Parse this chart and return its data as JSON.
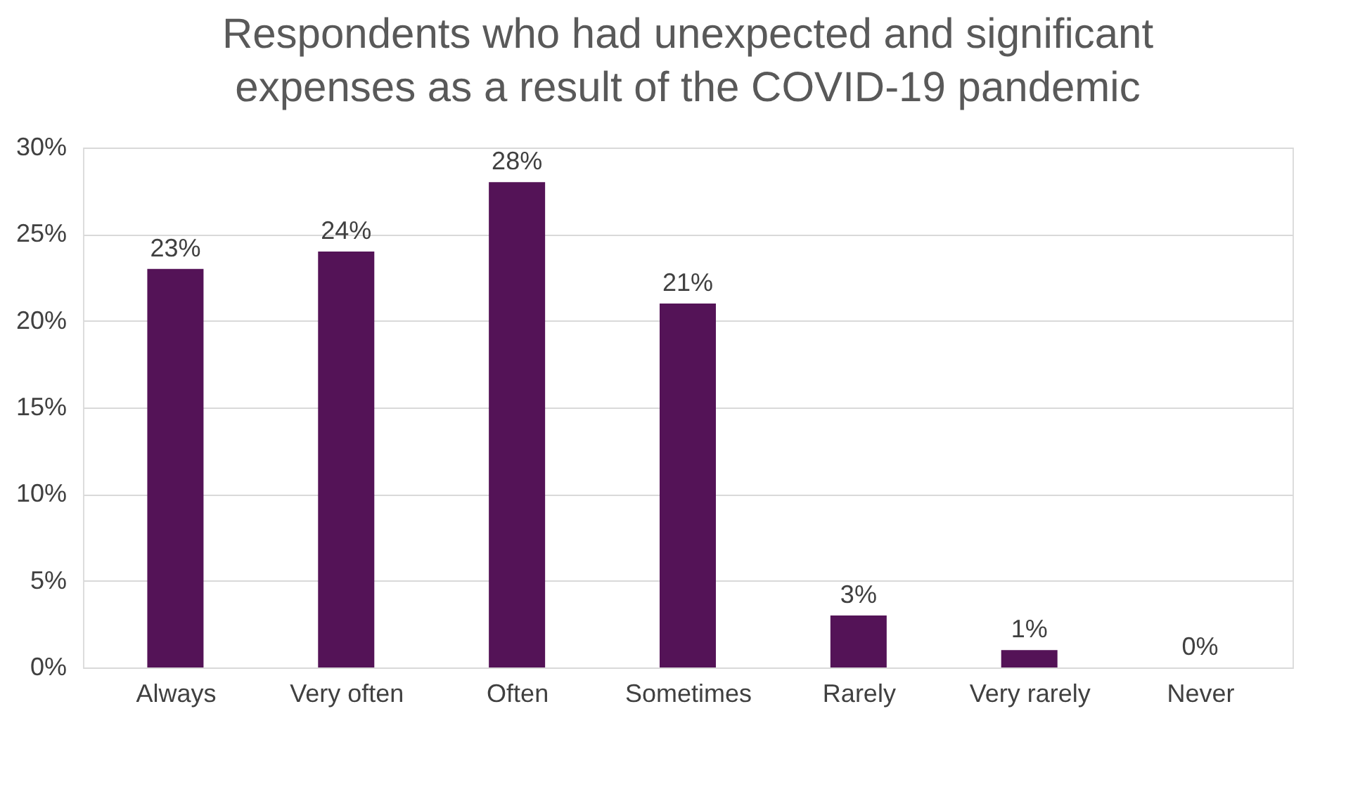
{
  "chart_data": {
    "type": "bar",
    "title": "Respondents who had unexpected and significant expenses as a result of the COVID-19 pandemic",
    "categories": [
      "Always",
      "Very often",
      "Often",
      "Sometimes",
      "Rarely",
      "Very rarely",
      "Never"
    ],
    "values": [
      23,
      24,
      28,
      21,
      3,
      1,
      0
    ],
    "value_labels": [
      "23%",
      "24%",
      "28%",
      "21%",
      "3%",
      "1%",
      "0%"
    ],
    "color": "#541357",
    "ylim": [
      0,
      30
    ],
    "yticks": [
      {
        "value": 0,
        "label": "0%"
      },
      {
        "value": 5,
        "label": "5%"
      },
      {
        "value": 10,
        "label": "10%"
      },
      {
        "value": 15,
        "label": "15%"
      },
      {
        "value": 20,
        "label": "20%"
      },
      {
        "value": 25,
        "label": "25%"
      },
      {
        "value": 30,
        "label": "30%"
      }
    ],
    "grid": "y"
  }
}
